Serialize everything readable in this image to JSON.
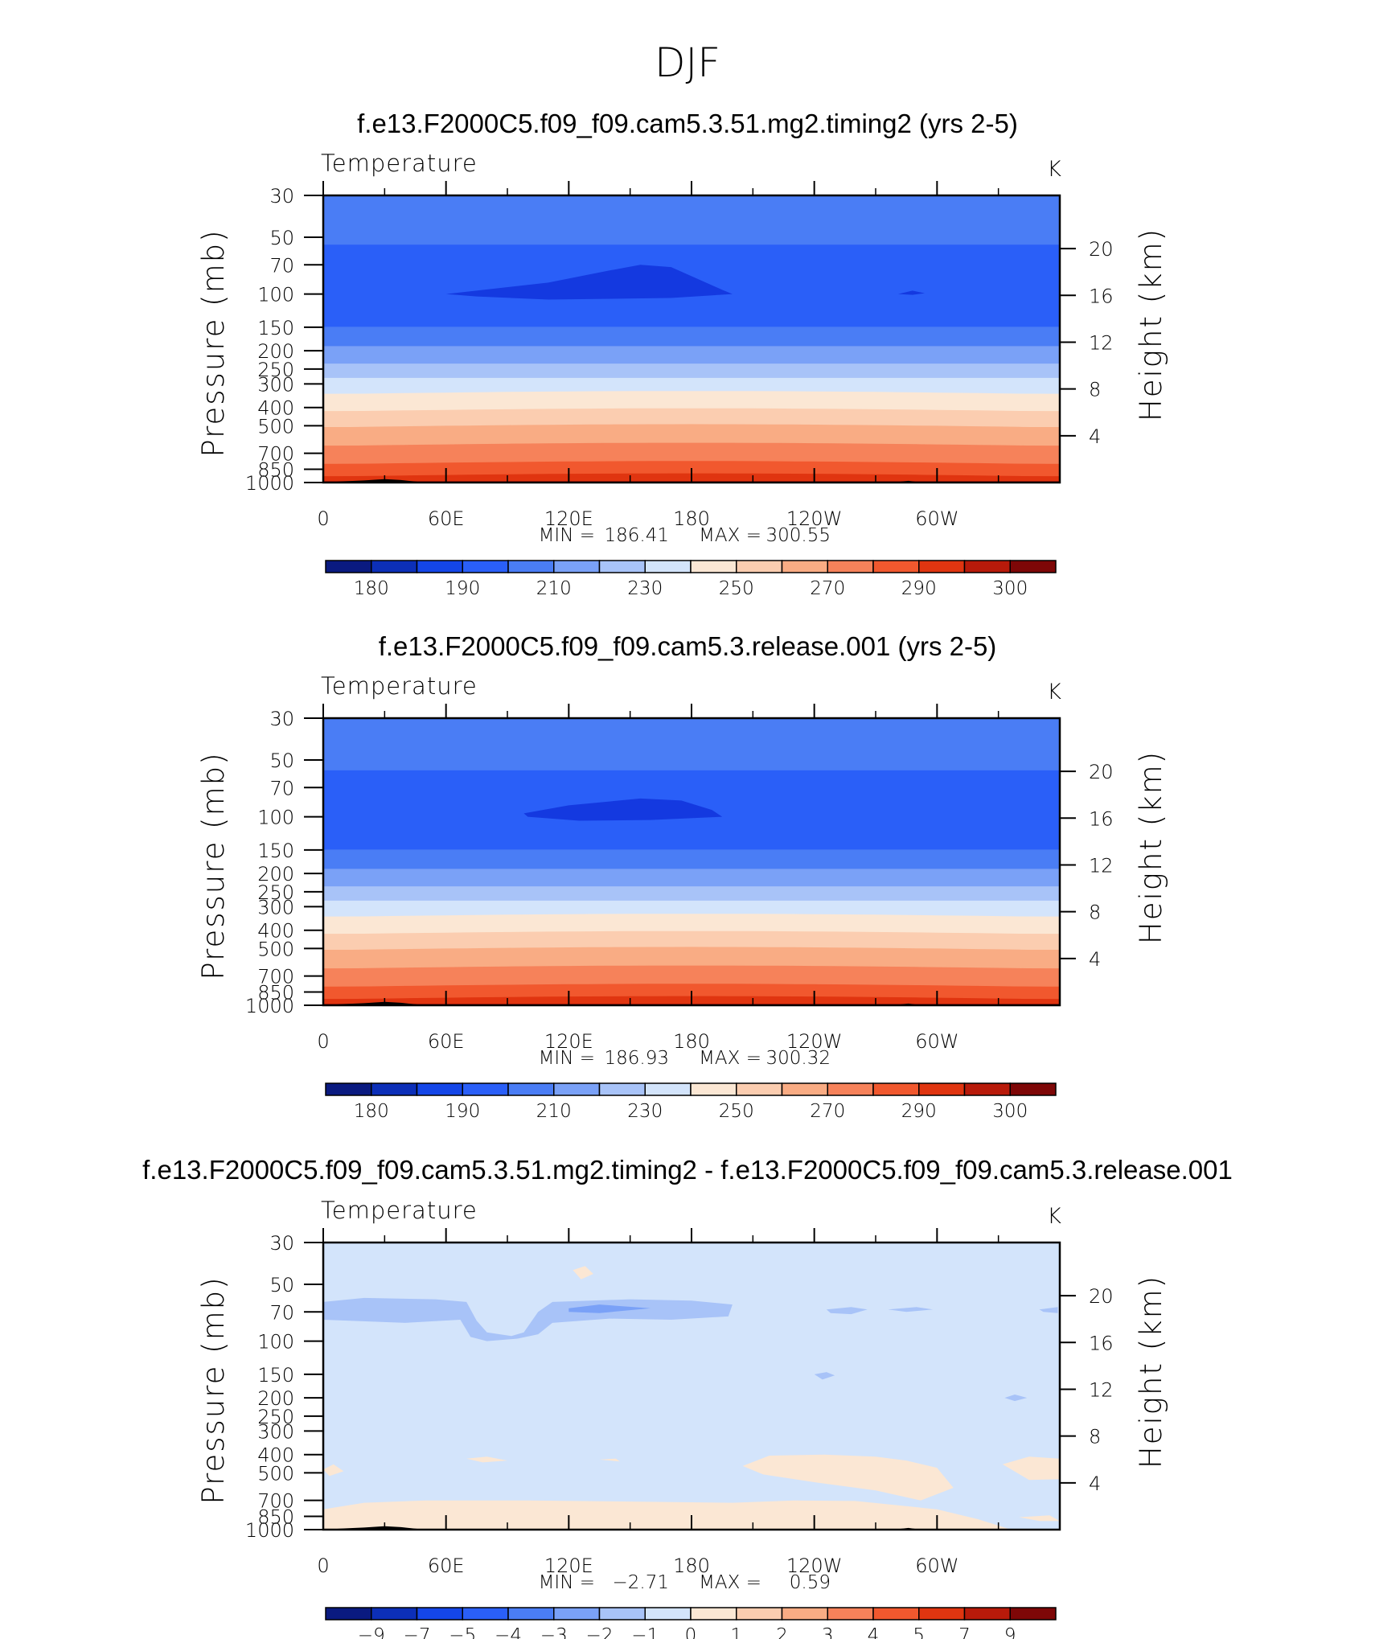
{
  "suptitle": "DJF",
  "chart_data": [
    {
      "type": "heatmap",
      "title": "f.e13.F2000C5.f09_f09.cam5.3.51.mg2.timing2 (yrs 2-5)",
      "left_label": "Temperature",
      "right_label": "K",
      "ylabel": "Pressure (mb)",
      "ylabel_right": "Height (km)",
      "x_ticks": [
        "0",
        "60E",
        "120E",
        "180",
        "120W",
        "60W"
      ],
      "y_ticks": [
        "30",
        "50",
        "70",
        "100",
        "150",
        "200",
        "250",
        "300",
        "400",
        "500",
        "700",
        "850",
        "1000"
      ],
      "y2_ticks": [
        "20",
        "16",
        "12",
        "8",
        "4"
      ],
      "stats": {
        "min_label": "MIN =",
        "min": "186.41",
        "max_label": "MAX =",
        "max": "300.55"
      },
      "colorbar_labels": [
        "180",
        "190",
        "210",
        "230",
        "250",
        "270",
        "290",
        "300"
      ],
      "colorbar_colors": [
        "#0a1a80",
        "#0c2fb8",
        "#1446e8",
        "#2a5ff8",
        "#4a7df5",
        "#7aa1f7",
        "#a8c3f8",
        "#d3e4fb",
        "#fbe7d4",
        "#fbcdb0",
        "#f9ac84",
        "#f6825a",
        "#f1582e",
        "#e03510",
        "#b81a0a",
        "#7e0707"
      ],
      "bands": [
        {
          "p": 30,
          "color": "#4a7df5"
        },
        {
          "p": 55,
          "color": "#2a5ff8"
        },
        {
          "p": 150,
          "color": "#4a7df5"
        },
        {
          "p": 190,
          "color": "#7aa1f7"
        },
        {
          "p": 235,
          "color": "#a8c3f8"
        },
        {
          "p": 280,
          "color": "#d3e4fb"
        },
        {
          "p": 340,
          "color": "#fbe7d4"
        },
        {
          "p": 420,
          "color": "#fbcdb0"
        },
        {
          "p": 510,
          "color": "#f9ac84"
        },
        {
          "p": 640,
          "color": "#f6825a"
        },
        {
          "p": 800,
          "color": "#f1582e"
        },
        {
          "p": 930,
          "color": "#e03510"
        },
        {
          "p": 985,
          "color": "#b81a0a"
        }
      ],
      "cold_core": {
        "color": "#1439e0",
        "points": [
          [
            60,
            100
          ],
          [
            110,
            87
          ],
          [
            140,
            75
          ],
          [
            155,
            70
          ],
          [
            170,
            72
          ],
          [
            195,
            95
          ],
          [
            200,
            100
          ],
          [
            170,
            105
          ],
          [
            110,
            107
          ],
          [
            75,
            103
          ],
          [
            60,
            100
          ]
        ]
      },
      "cold_core_2": {
        "color": "#1439e0",
        "points": [
          [
            281,
            100
          ],
          [
            288,
            96
          ],
          [
            294,
            99
          ],
          [
            288,
            101
          ]
        ]
      }
    },
    {
      "type": "heatmap",
      "title": "f.e13.F2000C5.f09_f09.cam5.3.release.001 (yrs 2-5)",
      "left_label": "Temperature",
      "right_label": "K",
      "ylabel": "Pressure (mb)",
      "ylabel_right": "Height (km)",
      "x_ticks": [
        "0",
        "60E",
        "120E",
        "180",
        "120W",
        "60W"
      ],
      "y_ticks": [
        "30",
        "50",
        "70",
        "100",
        "150",
        "200",
        "250",
        "300",
        "400",
        "500",
        "700",
        "850",
        "1000"
      ],
      "y2_ticks": [
        "20",
        "16",
        "12",
        "8",
        "4"
      ],
      "stats": {
        "min_label": "MIN =",
        "min": "186.93",
        "max_label": "MAX =",
        "max": "300.32"
      },
      "colorbar_labels": [
        "180",
        "190",
        "210",
        "230",
        "250",
        "270",
        "290",
        "300"
      ],
      "colorbar_colors": [
        "#0a1a80",
        "#0c2fb8",
        "#1446e8",
        "#2a5ff8",
        "#4a7df5",
        "#7aa1f7",
        "#a8c3f8",
        "#d3e4fb",
        "#fbe7d4",
        "#fbcdb0",
        "#f9ac84",
        "#f6825a",
        "#f1582e",
        "#e03510",
        "#b81a0a",
        "#7e0707"
      ],
      "bands": [
        {
          "p": 30,
          "color": "#4a7df5"
        },
        {
          "p": 57,
          "color": "#2a5ff8"
        },
        {
          "p": 150,
          "color": "#4a7df5"
        },
        {
          "p": 190,
          "color": "#7aa1f7"
        },
        {
          "p": 235,
          "color": "#a8c3f8"
        },
        {
          "p": 280,
          "color": "#d3e4fb"
        },
        {
          "p": 340,
          "color": "#fbe7d4"
        },
        {
          "p": 420,
          "color": "#fbcdb0"
        },
        {
          "p": 510,
          "color": "#f9ac84"
        },
        {
          "p": 640,
          "color": "#f6825a"
        },
        {
          "p": 800,
          "color": "#f1582e"
        },
        {
          "p": 930,
          "color": "#e03510"
        },
        {
          "p": 985,
          "color": "#b81a0a"
        }
      ],
      "cold_core": {
        "color": "#1439e0",
        "points": [
          [
            98,
            96
          ],
          [
            120,
            87
          ],
          [
            155,
            80
          ],
          [
            175,
            82
          ],
          [
            190,
            92
          ],
          [
            195,
            100
          ],
          [
            160,
            104
          ],
          [
            125,
            105
          ],
          [
            100,
            100
          ],
          [
            98,
            96
          ]
        ]
      }
    },
    {
      "type": "heatmap",
      "title": "f.e13.F2000C5.f09_f09.cam5.3.51.mg2.timing2 - f.e13.F2000C5.f09_f09.cam5.3.release.001",
      "left_label": "Temperature",
      "right_label": "K",
      "ylabel": "Pressure (mb)",
      "ylabel_right": "Height (km)",
      "x_ticks": [
        "0",
        "60E",
        "120E",
        "180",
        "120W",
        "60W"
      ],
      "y_ticks": [
        "30",
        "50",
        "70",
        "100",
        "150",
        "200",
        "250",
        "300",
        "400",
        "500",
        "700",
        "850",
        "1000"
      ],
      "y2_ticks": [
        "20",
        "16",
        "12",
        "8",
        "4"
      ],
      "stats": {
        "min_label": "MIN =",
        "min": "−2.71",
        "max_label": "MAX =",
        "max": "0.59"
      },
      "colorbar_labels": [
        "−9",
        "−7",
        "−5",
        "−4",
        "−3",
        "−2",
        "−1",
        "0",
        "1",
        "2",
        "3",
        "4",
        "5",
        "7",
        "9"
      ],
      "colorbar_colors": [
        "#0a1a80",
        "#0c2fb8",
        "#1446e8",
        "#2a5ff8",
        "#4a7df5",
        "#7aa1f7",
        "#a8c3f8",
        "#d3e4fb",
        "#fbe7d4",
        "#fbcdb0",
        "#f9ac84",
        "#f6825a",
        "#f1582e",
        "#e03510",
        "#b81a0a",
        "#7e0707"
      ],
      "background": "#d3e4fb",
      "patches": [
        {
          "color": "#a8c3f8",
          "points": [
            [
              0,
              62
            ],
            [
              20,
              59
            ],
            [
              55,
              60
            ],
            [
              70,
              62
            ],
            [
              75,
              78
            ],
            [
              80,
              90
            ],
            [
              92,
              94
            ],
            [
              98,
              90
            ],
            [
              105,
              70
            ],
            [
              112,
              62
            ],
            [
              150,
              60
            ],
            [
              180,
              61
            ],
            [
              200,
              64
            ],
            [
              198,
              74
            ],
            [
              170,
              77
            ],
            [
              140,
              76
            ],
            [
              112,
              80
            ],
            [
              105,
              92
            ],
            [
              95,
              97
            ],
            [
              80,
              100
            ],
            [
              72,
              95
            ],
            [
              67,
              77
            ],
            [
              40,
              80
            ],
            [
              0,
              77
            ]
          ]
        },
        {
          "color": "#7aa1f7",
          "points": [
            [
              120,
              67
            ],
            [
              135,
              64
            ],
            [
              160,
              67
            ],
            [
              135,
              71
            ],
            [
              120,
              70
            ]
          ]
        },
        {
          "color": "#a8c3f8",
          "points": [
            [
              246,
              68
            ],
            [
              258,
              66
            ],
            [
              266,
              68
            ],
            [
              258,
              72
            ],
            [
              248,
              71
            ]
          ]
        },
        {
          "color": "#a8c3f8",
          "points": [
            [
              276,
              68
            ],
            [
              290,
              66
            ],
            [
              298,
              68
            ],
            [
              285,
              70
            ]
          ]
        },
        {
          "color": "#a8c3f8",
          "points": [
            [
              350,
              68
            ],
            [
              359,
              66
            ],
            [
              359,
              71
            ],
            [
              352,
              70
            ]
          ]
        },
        {
          "color": "#a8c3f8",
          "points": [
            [
              240,
              150
            ],
            [
              246,
              146
            ],
            [
              250,
              152
            ],
            [
              244,
              160
            ]
          ]
        },
        {
          "color": "#a8c3f8",
          "points": [
            [
              333,
              200
            ],
            [
              338,
              192
            ],
            [
              344,
              200
            ],
            [
              338,
              208
            ]
          ]
        },
        {
          "color": "#fbe7d4",
          "points": [
            [
              122,
              42
            ],
            [
              128,
              40
            ],
            [
              132,
              44
            ],
            [
              126,
              47
            ]
          ]
        },
        {
          "color": "#fbe7d4",
          "points": [
            [
              0,
              480
            ],
            [
              5,
              450
            ],
            [
              10,
              490
            ],
            [
              3,
              520
            ]
          ]
        },
        {
          "color": "#fbe7d4",
          "points": [
            [
              70,
              420
            ],
            [
              80,
              410
            ],
            [
              90,
              430
            ],
            [
              78,
              440
            ]
          ]
        },
        {
          "color": "#fbe7d4",
          "points": [
            [
              135,
              425
            ],
            [
              143,
              420
            ],
            [
              145,
              435
            ]
          ]
        },
        {
          "color": "#fbe7d4",
          "points": [
            [
              205,
              460
            ],
            [
              218,
              405
            ],
            [
              245,
              400
            ],
            [
              270,
              410
            ],
            [
              285,
              430
            ],
            [
              300,
              470
            ],
            [
              308,
              600
            ],
            [
              292,
              700
            ],
            [
              270,
              620
            ],
            [
              240,
              560
            ],
            [
              215,
              510
            ]
          ]
        },
        {
          "color": "#fbe7d4",
          "points": [
            [
              332,
              450
            ],
            [
              345,
              410
            ],
            [
              360,
              420
            ],
            [
              360,
              540
            ],
            [
              345,
              545
            ]
          ]
        },
        {
          "color": "#fbe7d4",
          "points": [
            [
              0,
              780
            ],
            [
              20,
              720
            ],
            [
              50,
              700
            ],
            [
              100,
              700
            ],
            [
              150,
              710
            ],
            [
              200,
              720
            ],
            [
              230,
              700
            ],
            [
              260,
              705
            ],
            [
              300,
              780
            ],
            [
              320,
              880
            ],
            [
              335,
              990
            ],
            [
              330,
              1000
            ],
            [
              0,
              1000
            ]
          ]
        },
        {
          "color": "#fbe7d4",
          "points": [
            [
              340,
              860
            ],
            [
              355,
              840
            ],
            [
              360,
              900
            ],
            [
              350,
              900
            ]
          ]
        }
      ]
    }
  ]
}
